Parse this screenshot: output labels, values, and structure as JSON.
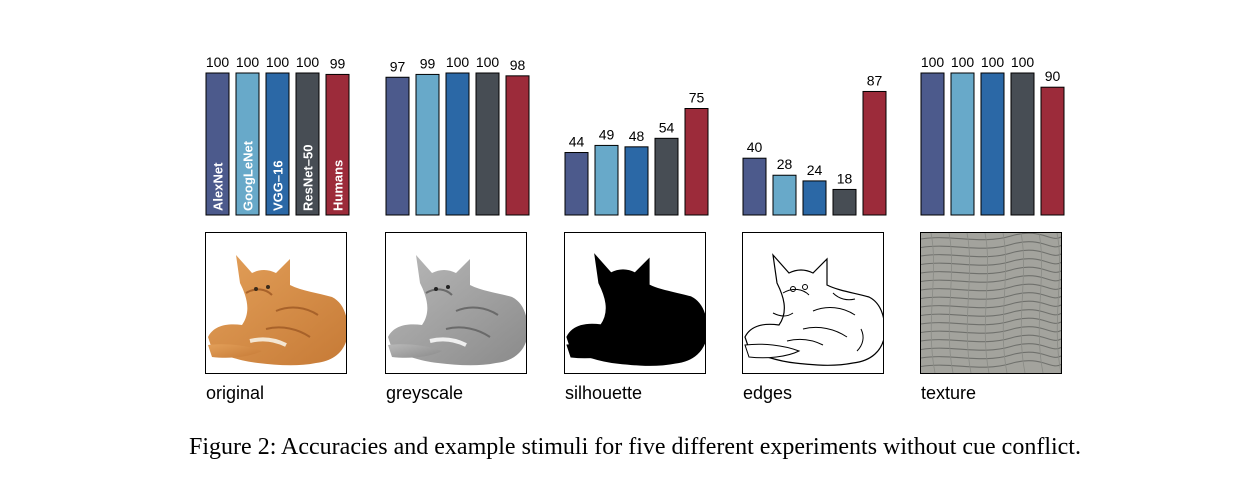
{
  "chart_data": {
    "type": "bar",
    "y_unit": "accuracy (%)",
    "ylim": [
      0,
      100
    ],
    "models": [
      "AlexNet",
      "GoogLeNet",
      "VGG–16",
      "ResNet–50",
      "Humans"
    ],
    "colors": [
      "#4c5a8c",
      "#68a9c9",
      "#2b68a6",
      "#474d54",
      "#9c2b3a"
    ],
    "panels": [
      {
        "experiment": "original",
        "values": [
          100,
          100,
          100,
          100,
          99
        ]
      },
      {
        "experiment": "greyscale",
        "values": [
          97,
          99,
          100,
          100,
          98
        ]
      },
      {
        "experiment": "silhouette",
        "values": [
          44,
          49,
          48,
          54,
          75
        ]
      },
      {
        "experiment": "edges",
        "values": [
          40,
          28,
          24,
          18,
          87
        ]
      },
      {
        "experiment": "texture",
        "values": [
          100,
          100,
          100,
          100,
          90
        ]
      }
    ]
  },
  "caption": "Figure 2: Accuracies and example stimuli for five different experiments without cue conflict."
}
